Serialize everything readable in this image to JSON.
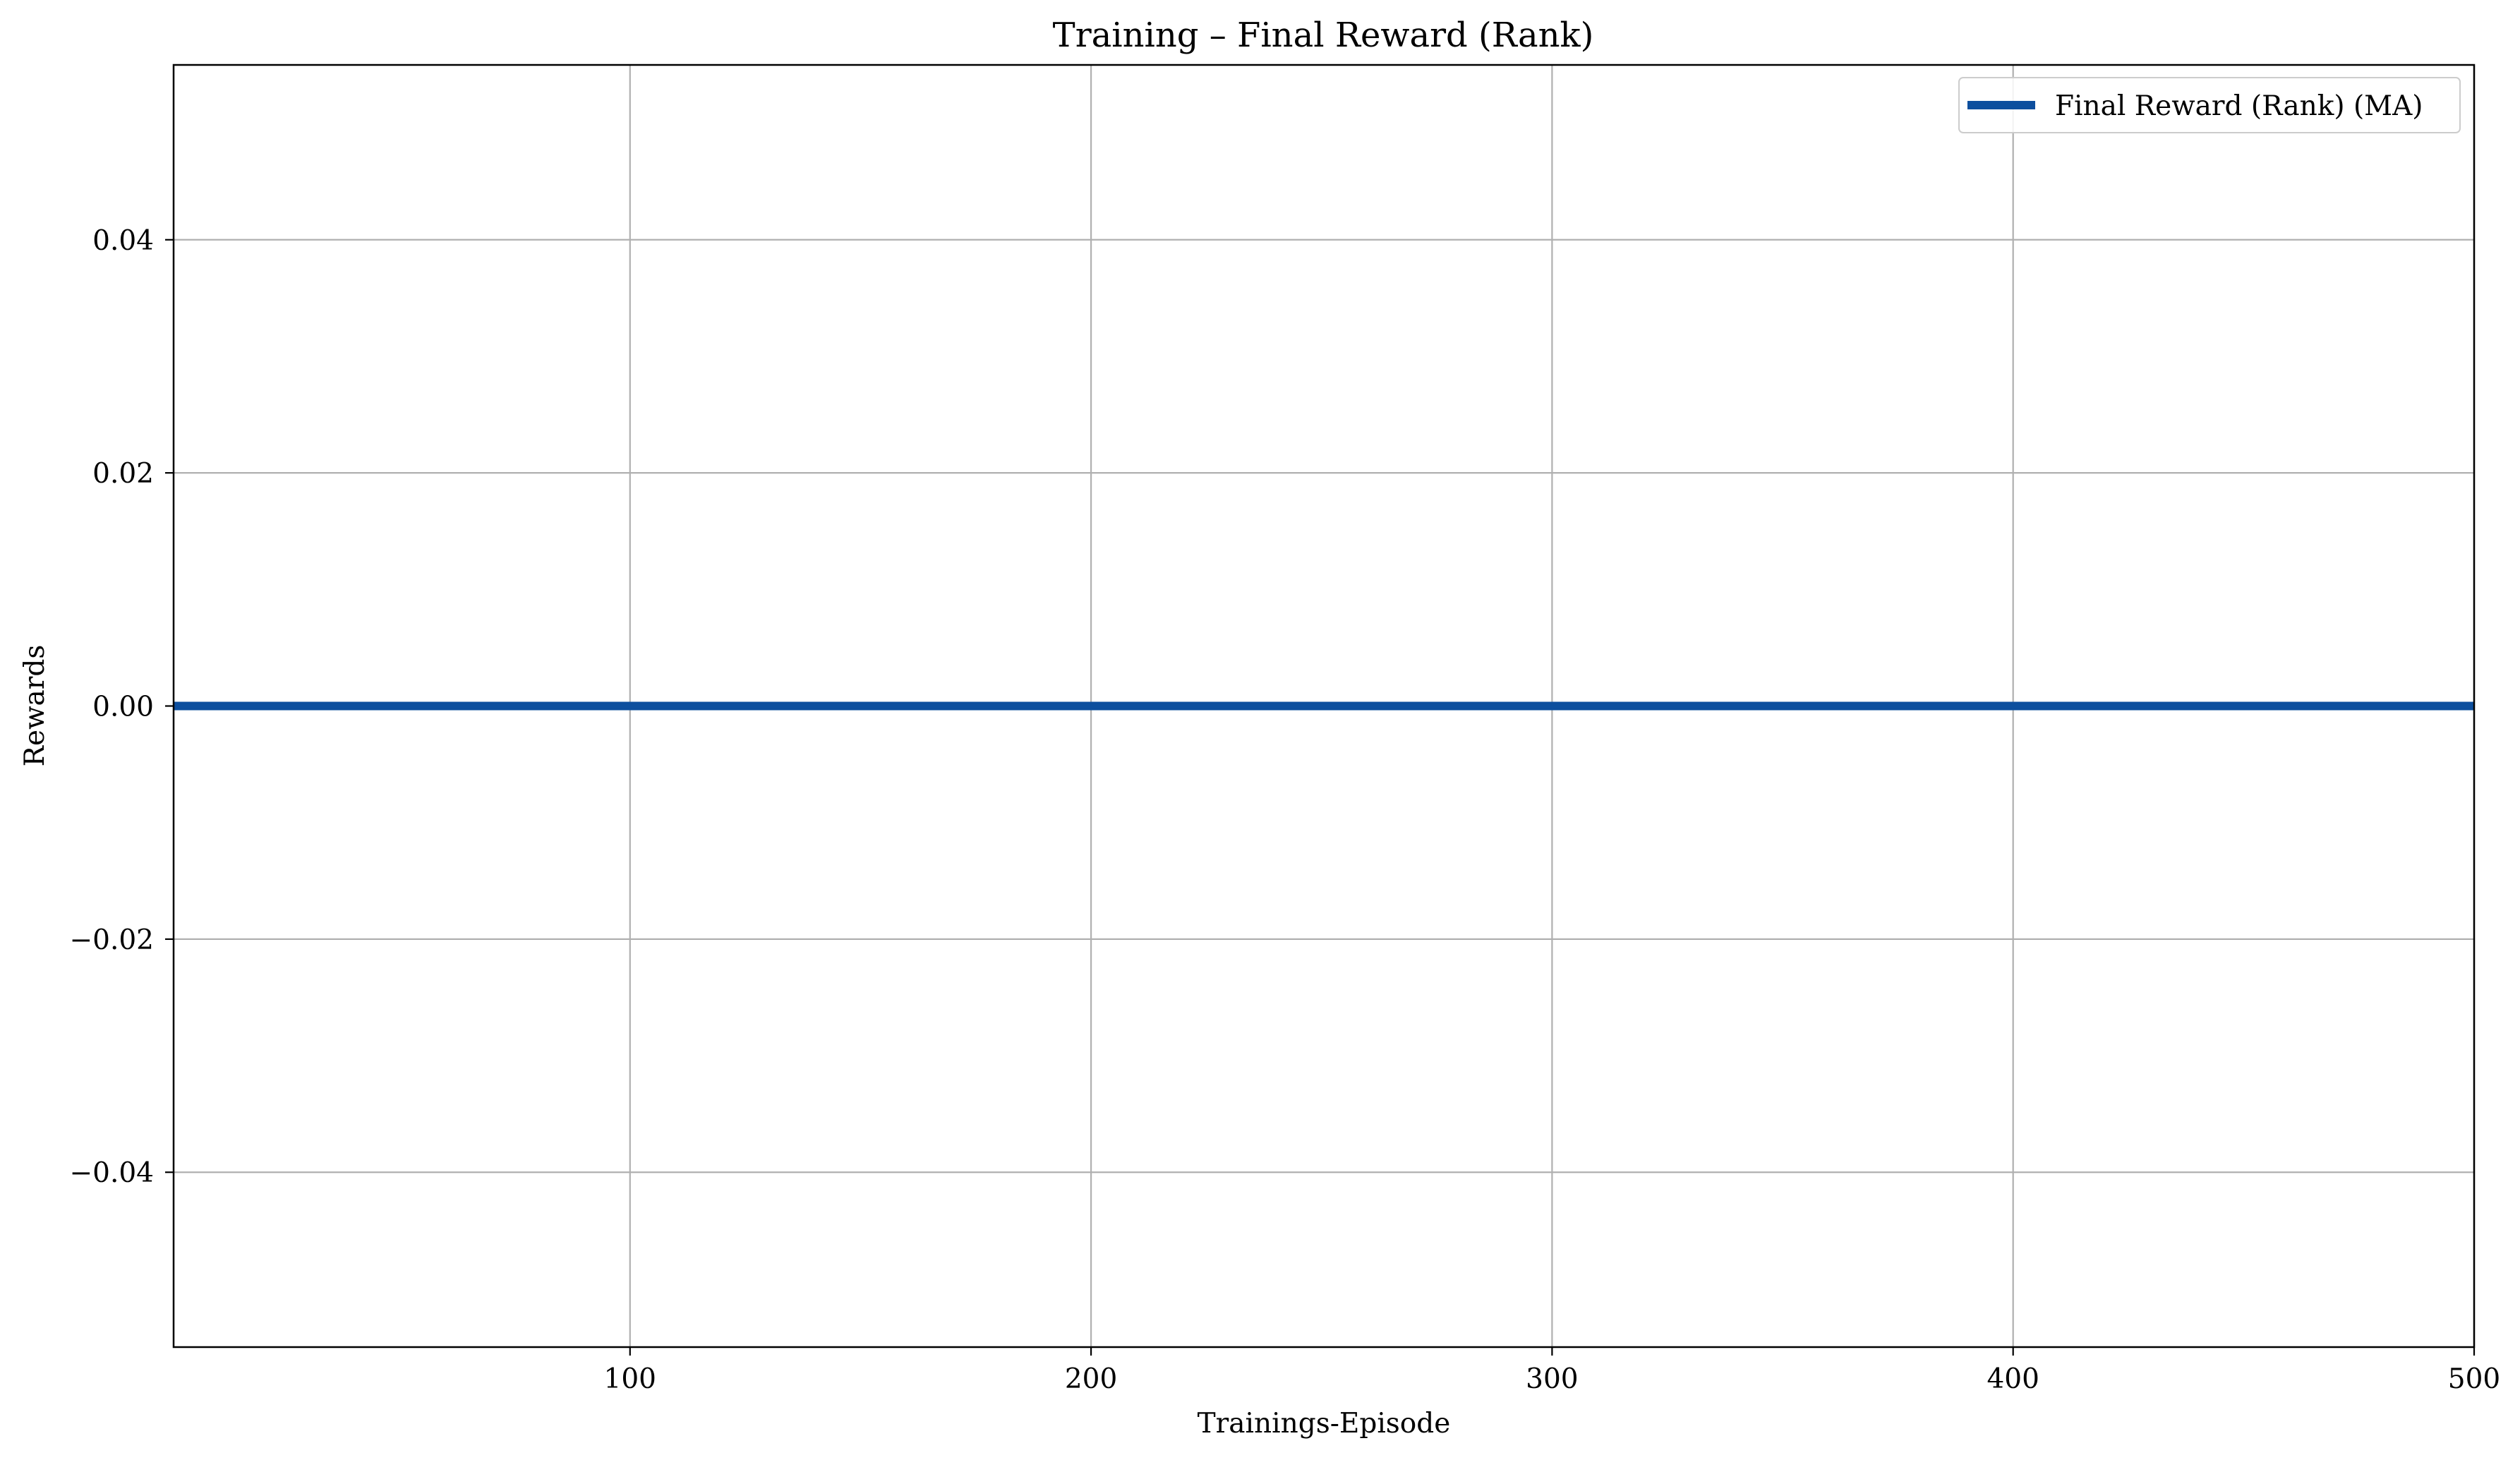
{
  "chart_data": {
    "type": "line",
    "title": "Training – Final Reward (Rank)",
    "xlabel": "Trainings-Episode",
    "ylabel": "Rewards",
    "xlim": [
      1,
      500
    ],
    "ylim": [
      -0.055,
      0.055
    ],
    "x_ticks": [
      100,
      200,
      300,
      400,
      500
    ],
    "x_tick_labels": [
      "100",
      "200",
      "300",
      "400",
      "500"
    ],
    "y_ticks": [
      -0.04,
      -0.02,
      0.0,
      0.02,
      0.04
    ],
    "y_tick_labels": [
      "−0.04",
      "−0.02",
      "0.00",
      "0.02",
      "0.04"
    ],
    "grid": true,
    "legend_position": "top-right",
    "series": [
      {
        "name": "Final Reward (Rank) (MA)",
        "color": "#0d4f9e",
        "x": [
          1,
          500
        ],
        "y": [
          0.0,
          0.0
        ]
      }
    ]
  }
}
